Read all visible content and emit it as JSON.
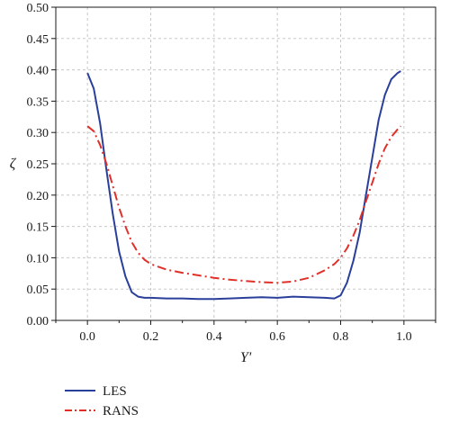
{
  "chart_data": {
    "type": "line",
    "title": "",
    "xlabel": "Y'",
    "ylabel": "ζ",
    "xlim": [
      -0.1,
      1.1
    ],
    "ylim": [
      0.0,
      0.5
    ],
    "x_ticks": [
      "0.0",
      "0.2",
      "0.4",
      "0.6",
      "0.8",
      "1.0"
    ],
    "x_tick_values": [
      0.0,
      0.2,
      0.4,
      0.6,
      0.8,
      1.0
    ],
    "y_ticks": [
      "0.00",
      "0.05",
      "0.10",
      "0.15",
      "0.20",
      "0.25",
      "0.30",
      "0.35",
      "0.40",
      "0.45",
      "0.50"
    ],
    "y_tick_values": [
      0.0,
      0.05,
      0.1,
      0.15,
      0.2,
      0.25,
      0.3,
      0.35,
      0.4,
      0.45,
      0.5
    ],
    "grid": true,
    "legend_position": "below the plot, left",
    "series": [
      {
        "name": "LES",
        "color": "#2a3f9a",
        "dash": "solid",
        "x": [
          0.0,
          0.02,
          0.04,
          0.06,
          0.08,
          0.1,
          0.12,
          0.14,
          0.16,
          0.18,
          0.2,
          0.25,
          0.3,
          0.35,
          0.4,
          0.45,
          0.5,
          0.55,
          0.6,
          0.65,
          0.7,
          0.75,
          0.78,
          0.8,
          0.82,
          0.84,
          0.86,
          0.88,
          0.9,
          0.92,
          0.94,
          0.96,
          0.98,
          0.99
        ],
        "y": [
          0.395,
          0.37,
          0.315,
          0.24,
          0.17,
          0.11,
          0.07,
          0.045,
          0.038,
          0.036,
          0.036,
          0.035,
          0.035,
          0.034,
          0.034,
          0.035,
          0.036,
          0.037,
          0.036,
          0.038,
          0.037,
          0.036,
          0.035,
          0.04,
          0.06,
          0.095,
          0.14,
          0.2,
          0.26,
          0.32,
          0.36,
          0.385,
          0.395,
          0.398
        ]
      },
      {
        "name": "RANS",
        "color": "#e0302a",
        "dash": "dashdot",
        "x": [
          0.0,
          0.02,
          0.04,
          0.06,
          0.08,
          0.1,
          0.12,
          0.14,
          0.16,
          0.18,
          0.2,
          0.25,
          0.3,
          0.35,
          0.4,
          0.45,
          0.5,
          0.55,
          0.6,
          0.65,
          0.7,
          0.75,
          0.78,
          0.8,
          0.82,
          0.84,
          0.86,
          0.88,
          0.9,
          0.92,
          0.94,
          0.96,
          0.98,
          0.99
        ],
        "y": [
          0.31,
          0.302,
          0.28,
          0.25,
          0.215,
          0.18,
          0.15,
          0.125,
          0.108,
          0.097,
          0.09,
          0.081,
          0.076,
          0.072,
          0.068,
          0.065,
          0.063,
          0.061,
          0.06,
          0.062,
          0.068,
          0.08,
          0.09,
          0.1,
          0.115,
          0.135,
          0.16,
          0.19,
          0.22,
          0.25,
          0.275,
          0.293,
          0.305,
          0.31
        ]
      }
    ]
  }
}
